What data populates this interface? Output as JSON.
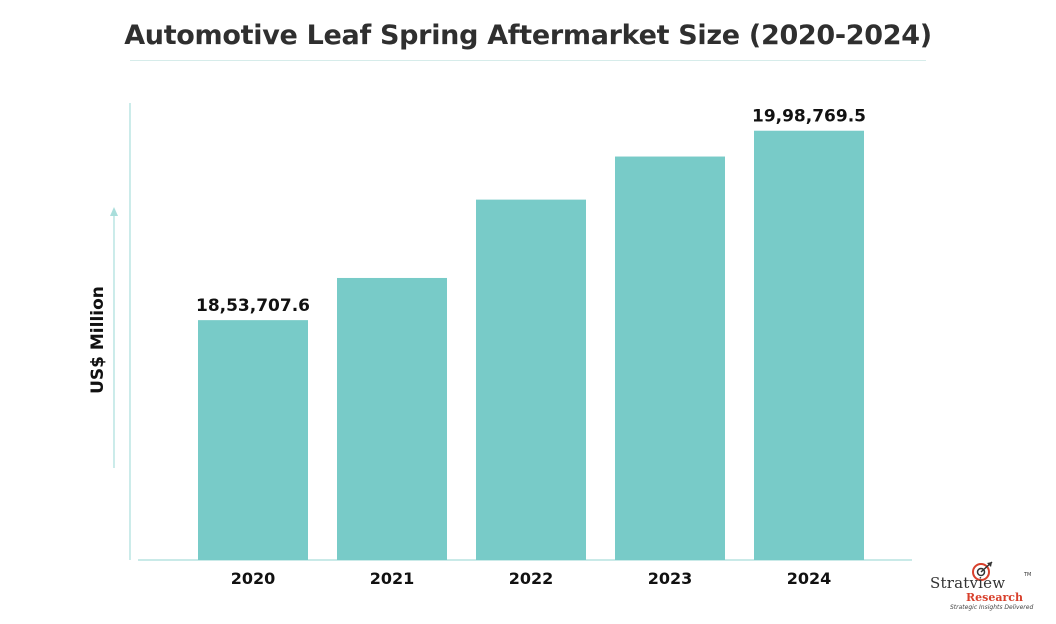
{
  "chart_data": {
    "type": "bar",
    "title": "Automotive Leaf Spring Aftermarket Size (2020-2024)",
    "xlabel": "",
    "ylabel": "US$ Million",
    "categories": [
      "2020",
      "2021",
      "2022",
      "2023",
      "2024"
    ],
    "values": [
      1853707.6,
      1886000,
      1946000,
      1979000,
      1998769.5
    ],
    "data_labels": [
      "18,53,707.6",
      "",
      "",
      "",
      "19,98,769.5"
    ],
    "ylim": [
      1670000,
      2020000
    ],
    "grid": false,
    "bar_color": "#78cbc8",
    "axis_color": "#a9dedb"
  },
  "logo": {
    "name_main": "Stratview",
    "name_sub": "Research",
    "tagline": "Strategic Insights Delivered",
    "trademark": "TM",
    "accent_color": "#d8402c"
  }
}
